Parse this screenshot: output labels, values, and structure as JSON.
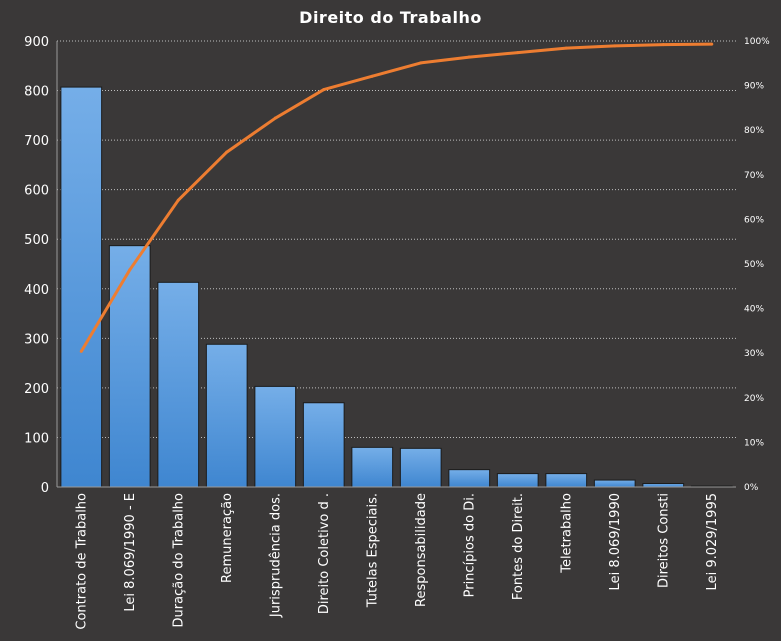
{
  "chart_data": {
    "type": "bar",
    "title": "Direito  do Trabalho",
    "categories": [
      "Contrato de Trabalho",
      "Lei 8.069/1990 - E",
      "Duração do Trabalho",
      "Remuneração",
      "Jurisprudência dos.",
      "Direito Coletivo d .",
      "Tutelas Especiais.",
      "Responsabilidade",
      "Princípios do Di.",
      "Fontes do Direit.",
      "Teletrabalho",
      "Lei 8.069/1990",
      "Direitos Consti",
      "Lei 9.029/1995"
    ],
    "series": [
      {
        "type": "bar",
        "axis": "left",
        "values": [
          807,
          487,
          413,
          288,
          203,
          170,
          80,
          78,
          35,
          27,
          27,
          14,
          7,
          2
        ]
      },
      {
        "type": "line",
        "axis": "right",
        "unit": "%",
        "values": [
          30.4,
          48.7,
          64.3,
          75.1,
          82.7,
          89.1,
          92.1,
          95.1,
          96.4,
          97.4,
          98.4,
          98.9,
          99.2,
          99.3
        ]
      }
    ],
    "ylim": [
      0,
      900
    ],
    "yticks": [
      0,
      100,
      200,
      300,
      400,
      500,
      600,
      700,
      800,
      900
    ],
    "y2lim": [
      0,
      100
    ],
    "y2ticks": [
      "0%",
      "10%",
      "20%",
      "30%",
      "40%",
      "50%",
      "60%",
      "70%",
      "80%",
      "90%",
      "100%"
    ],
    "grid": "horizontal dotted",
    "legend": "none",
    "colors": {
      "background": "#3a3838",
      "bar": "#4a8fd6",
      "bar_light": "#75aee8",
      "bar_border": "#1c1c1c",
      "line": "#ed7d31",
      "grid": "#bfbfbf",
      "text": "#ffffff"
    }
  }
}
